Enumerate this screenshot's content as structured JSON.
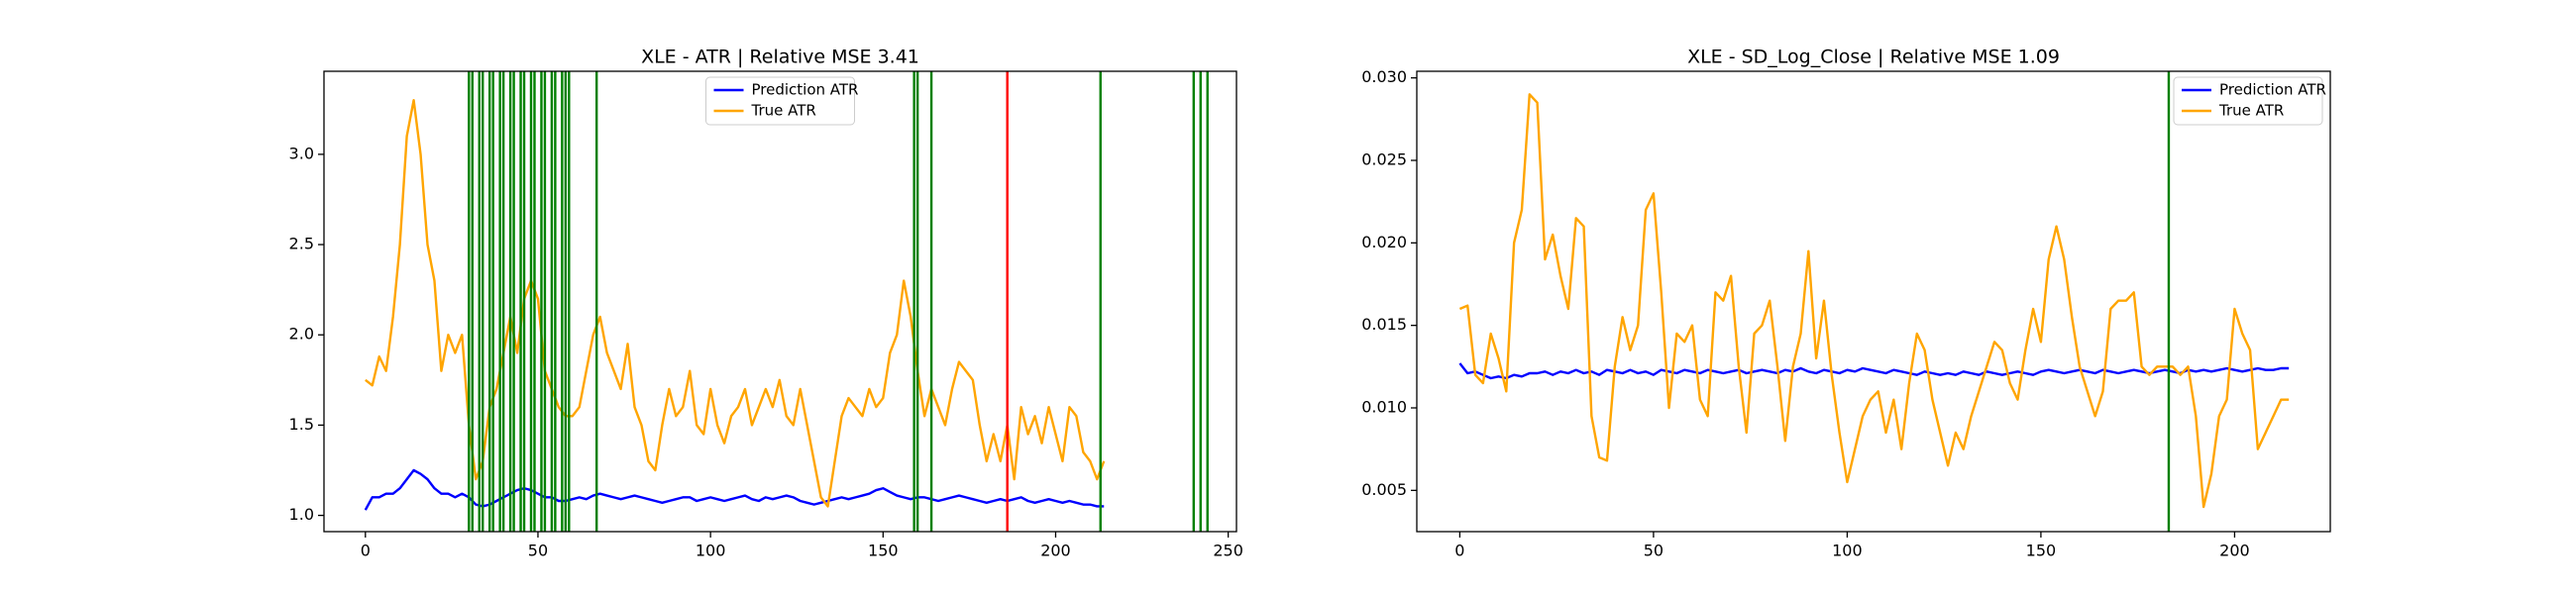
{
  "chart_data": [
    {
      "type": "line",
      "title": "XLE - ATR | Relative MSE 3.41",
      "x": [
        0,
        2,
        4,
        6,
        8,
        10,
        12,
        14,
        16,
        18,
        20,
        22,
        24,
        26,
        28,
        30,
        32,
        34,
        36,
        38,
        40,
        42,
        44,
        46,
        48,
        50,
        52,
        54,
        56,
        58,
        60,
        62,
        64,
        66,
        68,
        70,
        72,
        74,
        76,
        78,
        80,
        82,
        84,
        86,
        88,
        90,
        92,
        94,
        96,
        98,
        100,
        102,
        104,
        106,
        108,
        110,
        112,
        114,
        116,
        118,
        120,
        122,
        124,
        126,
        128,
        130,
        132,
        134,
        136,
        138,
        140,
        142,
        144,
        146,
        148,
        150,
        152,
        154,
        156,
        158,
        160,
        162,
        164,
        166,
        168,
        170,
        172,
        174,
        176,
        178,
        180,
        182,
        184,
        186,
        188,
        190,
        192,
        194,
        196,
        198,
        200,
        202,
        204,
        206,
        208,
        210,
        212,
        214
      ],
      "series": [
        {
          "name": "Prediction ATR",
          "color": "#0000ff",
          "values": [
            1.03,
            1.1,
            1.1,
            1.12,
            1.12,
            1.15,
            1.2,
            1.25,
            1.23,
            1.2,
            1.15,
            1.12,
            1.12,
            1.1,
            1.12,
            1.1,
            1.06,
            1.05,
            1.06,
            1.08,
            1.1,
            1.12,
            1.14,
            1.15,
            1.14,
            1.12,
            1.1,
            1.1,
            1.08,
            1.08,
            1.09,
            1.1,
            1.09,
            1.11,
            1.12,
            1.11,
            1.1,
            1.09,
            1.1,
            1.11,
            1.1,
            1.09,
            1.08,
            1.07,
            1.08,
            1.09,
            1.1,
            1.1,
            1.08,
            1.09,
            1.1,
            1.09,
            1.08,
            1.09,
            1.1,
            1.11,
            1.09,
            1.08,
            1.1,
            1.09,
            1.1,
            1.11,
            1.1,
            1.08,
            1.07,
            1.06,
            1.07,
            1.08,
            1.09,
            1.1,
            1.09,
            1.1,
            1.11,
            1.12,
            1.14,
            1.15,
            1.13,
            1.11,
            1.1,
            1.09,
            1.1,
            1.1,
            1.09,
            1.08,
            1.09,
            1.1,
            1.11,
            1.1,
            1.09,
            1.08,
            1.07,
            1.08,
            1.09,
            1.08,
            1.09,
            1.1,
            1.08,
            1.07,
            1.08,
            1.09,
            1.08,
            1.07,
            1.08,
            1.07,
            1.06,
            1.06,
            1.05,
            1.05
          ]
        },
        {
          "name": "True ATR",
          "color": "#ffa500",
          "values": [
            1.75,
            1.72,
            1.88,
            1.8,
            2.1,
            2.5,
            3.1,
            3.3,
            3.0,
            2.5,
            2.3,
            1.8,
            2.0,
            1.9,
            2.0,
            1.5,
            1.2,
            1.3,
            1.6,
            1.7,
            1.9,
            2.1,
            1.9,
            2.2,
            2.3,
            2.2,
            1.8,
            1.7,
            1.6,
            1.55,
            1.55,
            1.6,
            1.8,
            2.0,
            2.1,
            1.9,
            1.8,
            1.7,
            1.95,
            1.6,
            1.5,
            1.3,
            1.25,
            1.5,
            1.7,
            1.55,
            1.6,
            1.8,
            1.5,
            1.45,
            1.7,
            1.5,
            1.4,
            1.55,
            1.6,
            1.7,
            1.5,
            1.6,
            1.7,
            1.6,
            1.75,
            1.55,
            1.5,
            1.7,
            1.5,
            1.3,
            1.1,
            1.05,
            1.3,
            1.55,
            1.65,
            1.6,
            1.55,
            1.7,
            1.6,
            1.65,
            1.9,
            2.0,
            2.3,
            2.1,
            1.8,
            1.55,
            1.7,
            1.6,
            1.5,
            1.7,
            1.85,
            1.8,
            1.75,
            1.5,
            1.3,
            1.45,
            1.3,
            1.5,
            1.2,
            1.6,
            1.45,
            1.55,
            1.4,
            1.6,
            1.45,
            1.3,
            1.6,
            1.55,
            1.35,
            1.3,
            1.2,
            1.3
          ]
        }
      ],
      "vlines": [
        {
          "color": "#008000",
          "x": [
            30,
            31,
            33,
            34,
            36,
            37,
            39,
            40,
            42,
            43,
            45,
            46,
            48,
            49,
            51,
            52,
            54,
            55,
            57,
            58,
            59,
            67,
            159,
            160,
            164,
            213,
            240,
            242,
            244
          ]
        },
        {
          "color": "#ff0000",
          "x": [
            186
          ]
        }
      ],
      "xlim": [
        -12,
        252.4
      ],
      "ylim": [
        0.91,
        3.46
      ],
      "xticks": [
        0,
        50,
        100,
        150,
        200,
        250
      ],
      "yticks": [
        {
          "value": 1,
          "label": "1.0"
        },
        1.5,
        {
          "value": 2,
          "label": "2.0"
        },
        2.5,
        {
          "value": 3,
          "label": "3.0"
        }
      ],
      "legend": "upper center"
    },
    {
      "type": "line",
      "title": "XLE - SD_Log_Close | Relative MSE 1.09",
      "x": [
        0,
        2,
        4,
        6,
        8,
        10,
        12,
        14,
        16,
        18,
        20,
        22,
        24,
        26,
        28,
        30,
        32,
        34,
        36,
        38,
        40,
        42,
        44,
        46,
        48,
        50,
        52,
        54,
        56,
        58,
        60,
        62,
        64,
        66,
        68,
        70,
        72,
        74,
        76,
        78,
        80,
        82,
        84,
        86,
        88,
        90,
        92,
        94,
        96,
        98,
        100,
        102,
        104,
        106,
        108,
        110,
        112,
        114,
        116,
        118,
        120,
        122,
        124,
        126,
        128,
        130,
        132,
        134,
        136,
        138,
        140,
        142,
        144,
        146,
        148,
        150,
        152,
        154,
        156,
        158,
        160,
        162,
        164,
        166,
        168,
        170,
        172,
        174,
        176,
        178,
        180,
        182,
        184,
        186,
        188,
        190,
        192,
        194,
        196,
        198,
        200,
        202,
        204,
        206,
        208,
        210,
        212,
        214
      ],
      "series": [
        {
          "name": "Prediction ATR",
          "color": "#0000ff",
          "values": [
            0.0127,
            0.0121,
            0.0122,
            0.012,
            0.0118,
            0.0119,
            0.0118,
            0.012,
            0.0119,
            0.0121,
            0.0121,
            0.0122,
            0.012,
            0.0122,
            0.0121,
            0.0123,
            0.0121,
            0.0122,
            0.012,
            0.0123,
            0.0122,
            0.0121,
            0.0123,
            0.0121,
            0.0122,
            0.012,
            0.0123,
            0.0122,
            0.0121,
            0.0123,
            0.0122,
            0.0121,
            0.0123,
            0.0122,
            0.0121,
            0.0122,
            0.0123,
            0.0121,
            0.0122,
            0.0123,
            0.0122,
            0.0121,
            0.0123,
            0.0122,
            0.0124,
            0.0122,
            0.0121,
            0.0123,
            0.0122,
            0.0121,
            0.0123,
            0.0122,
            0.0124,
            0.0123,
            0.0122,
            0.0121,
            0.0123,
            0.0122,
            0.0121,
            0.012,
            0.0122,
            0.0121,
            0.012,
            0.0121,
            0.012,
            0.0122,
            0.0121,
            0.012,
            0.0122,
            0.0121,
            0.012,
            0.0121,
            0.0122,
            0.0121,
            0.012,
            0.0122,
            0.0123,
            0.0122,
            0.0121,
            0.0122,
            0.0123,
            0.0122,
            0.0121,
            0.0123,
            0.0122,
            0.0121,
            0.0122,
            0.0123,
            0.0122,
            0.0121,
            0.0122,
            0.0123,
            0.0122,
            0.0121,
            0.0123,
            0.0122,
            0.0123,
            0.0122,
            0.0123,
            0.0124,
            0.0123,
            0.0122,
            0.0123,
            0.0124,
            0.0123,
            0.0123,
            0.0124,
            0.0124
          ]
        },
        {
          "name": "True ATR",
          "color": "#ffa500",
          "values": [
            0.016,
            0.0162,
            0.012,
            0.0115,
            0.0145,
            0.013,
            0.011,
            0.02,
            0.022,
            0.029,
            0.0285,
            0.019,
            0.0205,
            0.018,
            0.016,
            0.0215,
            0.021,
            0.0095,
            0.007,
            0.0068,
            0.0125,
            0.0155,
            0.0135,
            0.015,
            0.022,
            0.023,
            0.017,
            0.01,
            0.0145,
            0.014,
            0.015,
            0.0105,
            0.0095,
            0.017,
            0.0165,
            0.018,
            0.0125,
            0.0085,
            0.0145,
            0.015,
            0.0165,
            0.0125,
            0.008,
            0.0125,
            0.0145,
            0.0195,
            0.013,
            0.0165,
            0.012,
            0.0085,
            0.0055,
            0.0075,
            0.0095,
            0.0105,
            0.011,
            0.0085,
            0.0105,
            0.0075,
            0.0115,
            0.0145,
            0.0135,
            0.0105,
            0.0085,
            0.0065,
            0.0085,
            0.0075,
            0.0095,
            0.011,
            0.0125,
            0.014,
            0.0135,
            0.0115,
            0.0105,
            0.0135,
            0.016,
            0.014,
            0.019,
            0.021,
            0.019,
            0.0155,
            0.0125,
            0.011,
            0.0095,
            0.011,
            0.016,
            0.0165,
            0.0165,
            0.017,
            0.0125,
            0.012,
            0.0125,
            0.0125,
            0.0125,
            0.012,
            0.0125,
            0.0095,
            0.004,
            0.006,
            0.0095,
            0.0105,
            0.016,
            0.0145,
            0.0135,
            0.0075,
            0.0085,
            0.0095,
            0.0105,
            0.0105
          ]
        }
      ],
      "vlines": [
        {
          "color": "#008000",
          "x": [
            183
          ]
        }
      ],
      "xlim": [
        -11.1,
        224.7
      ],
      "ylim": [
        0.0025,
        0.0304
      ],
      "xticks": [
        0,
        50,
        100,
        150,
        200
      ],
      "yticks": [
        0.005,
        {
          "value": 0.01,
          "label": "0.010"
        },
        0.015,
        {
          "value": 0.02,
          "label": "0.020"
        },
        0.025,
        {
          "value": 0.03,
          "label": "0.030"
        }
      ],
      "legend": "upper right"
    }
  ]
}
